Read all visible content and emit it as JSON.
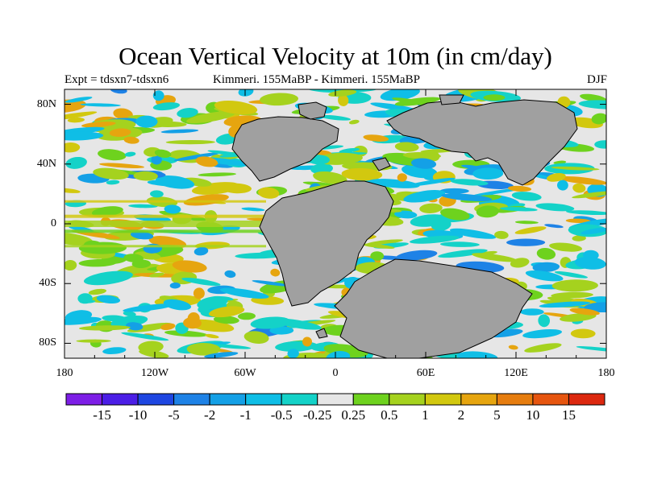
{
  "title": "Ocean Vertical Velocity at 10m (in cm/day)",
  "subtitle": {
    "left": "Expt = tdsxn7-tdsxn6",
    "center": "Kimmeri. 155MaBP - Kimmeri. 155MaBP",
    "right": "DJF"
  },
  "axes": {
    "lat_labels": [
      "80N",
      "40N",
      "0",
      "40S",
      "80S"
    ],
    "lat_values": [
      80,
      40,
      0,
      -40,
      -80
    ],
    "lon_labels": [
      "180",
      "120W",
      "60W",
      "0",
      "60E",
      "120E",
      "180"
    ],
    "lon_values": [
      -180,
      -120,
      -60,
      0,
      60,
      120,
      180
    ]
  },
  "colorbar": {
    "labels": [
      "-15",
      "-10",
      "-5",
      "-2",
      "-1",
      "-0.5",
      "-0.25",
      "0.25",
      "0.5",
      "1",
      "2",
      "5",
      "10",
      "15"
    ],
    "colors": [
      "#7d1ee6",
      "#4b1ee6",
      "#1e46e1",
      "#1e82e6",
      "#14a0e6",
      "#0fbee6",
      "#14d2c8",
      "#e6e6e6",
      "#6ed21e",
      "#a5d21e",
      "#d2c80f",
      "#e6a50f",
      "#e67d0f",
      "#e6550f",
      "#dc280f"
    ]
  },
  "map": {
    "land_color": "#a0a0a0",
    "ocean_background": "#e6e6e6"
  }
}
